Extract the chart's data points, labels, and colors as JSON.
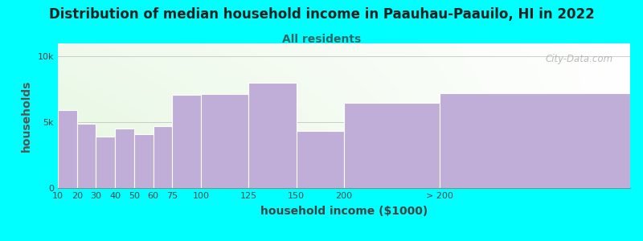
{
  "title": "Distribution of median household income in Paauhau-Paauilo, HI in 2022",
  "subtitle": "All residents",
  "xlabel": "household income ($1000)",
  "ylabel": "households",
  "bg_color": "#00FFFF",
  "plot_bg_top_left": "#d8f0d0",
  "plot_bg_bottom": "#ffffff",
  "bar_color": "#c0aed8",
  "bar_edge_color": "#c0aed8",
  "categories": [
    "10",
    "20",
    "30",
    "40",
    "50",
    "60",
    "75",
    "100",
    "125",
    "150",
    "200",
    "> 200"
  ],
  "values": [
    5900,
    4900,
    3900,
    4500,
    4100,
    4700,
    7100,
    7150,
    8000,
    4350,
    6500,
    7200
  ],
  "ytick_labels": [
    "0",
    "5k",
    "10k"
  ],
  "yticks": [
    0,
    5000,
    10000
  ],
  "ylim": [
    0,
    11000
  ],
  "bar_edges": [
    0,
    10,
    20,
    30,
    40,
    50,
    60,
    75,
    100,
    125,
    150,
    200,
    300
  ],
  "watermark": "City-Data.com",
  "title_fontsize": 12,
  "subtitle_fontsize": 10,
  "axis_label_fontsize": 10,
  "tick_fontsize": 8
}
